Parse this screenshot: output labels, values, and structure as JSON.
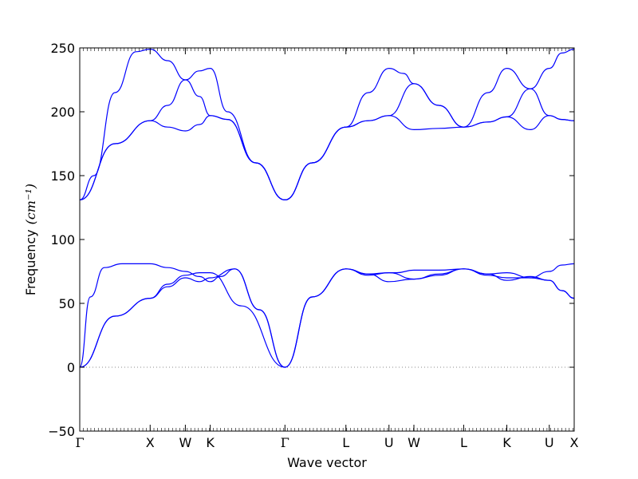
{
  "chart_data": {
    "type": "line",
    "title": "",
    "xlabel": "Wave vector",
    "ylabel": "Frequency",
    "ylabel_unit": "(cm⁻¹)",
    "ylim": [
      -50,
      250
    ],
    "yticks": [
      -50,
      0,
      50,
      100,
      150,
      200,
      250
    ],
    "grid": false,
    "line_color": "#0000ff",
    "zero_line_color": "#888888",
    "high_symmetry_points": [
      {
        "label": "Γ",
        "x": 0.0
      },
      {
        "label": "X",
        "x": 1.0
      },
      {
        "label": "W",
        "x": 1.5
      },
      {
        "label": "K",
        "x": 1.854
      },
      {
        "label": "Γ",
        "x": 2.915
      },
      {
        "label": "L",
        "x": 3.781
      },
      {
        "label": "U",
        "x": 4.393
      },
      {
        "label": "W",
        "x": 4.747
      },
      {
        "label": "L",
        "x": 5.454
      },
      {
        "label": "K",
        "x": 6.067
      },
      {
        "label": "U",
        "x": 6.67
      },
      {
        "label": "X",
        "x": 7.024
      }
    ],
    "xlim": [
      0,
      7.024
    ],
    "series": [
      {
        "values_at_points": [
          {
            "x": 0.0,
            "y": 0
          },
          {
            "x": 0.5,
            "y": 40
          },
          {
            "x": 1.0,
            "y": 54
          },
          {
            "x": 1.25,
            "y": 65
          },
          {
            "x": 1.5,
            "y": 72
          },
          {
            "x": 1.7,
            "y": 74
          },
          {
            "x": 1.854,
            "y": 74
          },
          {
            "x": 2.3,
            "y": 48
          },
          {
            "x": 2.915,
            "y": 0
          },
          {
            "x": 3.3,
            "y": 55
          },
          {
            "x": 3.781,
            "y": 77
          },
          {
            "x": 4.1,
            "y": 73
          },
          {
            "x": 4.393,
            "y": 67
          },
          {
            "x": 4.747,
            "y": 69
          },
          {
            "x": 5.1,
            "y": 73
          },
          {
            "x": 5.454,
            "y": 77
          },
          {
            "x": 5.8,
            "y": 73
          },
          {
            "x": 6.067,
            "y": 68
          },
          {
            "x": 6.4,
            "y": 71
          },
          {
            "x": 6.67,
            "y": 68
          },
          {
            "x": 6.85,
            "y": 60
          },
          {
            "x": 7.024,
            "y": 54
          }
        ]
      },
      {
        "values_at_points": [
          {
            "x": 0.0,
            "y": 0
          },
          {
            "x": 0.5,
            "y": 40
          },
          {
            "x": 1.0,
            "y": 54
          },
          {
            "x": 1.25,
            "y": 63
          },
          {
            "x": 1.5,
            "y": 70
          },
          {
            "x": 1.7,
            "y": 67
          },
          {
            "x": 1.854,
            "y": 70
          },
          {
            "x": 2.2,
            "y": 77
          },
          {
            "x": 2.55,
            "y": 45
          },
          {
            "x": 2.915,
            "y": 0
          },
          {
            "x": 3.3,
            "y": 55
          },
          {
            "x": 3.781,
            "y": 77
          },
          {
            "x": 4.1,
            "y": 72
          },
          {
            "x": 4.393,
            "y": 74
          },
          {
            "x": 4.747,
            "y": 69
          },
          {
            "x": 5.1,
            "y": 72
          },
          {
            "x": 5.454,
            "y": 77
          },
          {
            "x": 5.8,
            "y": 72
          },
          {
            "x": 6.067,
            "y": 70
          },
          {
            "x": 6.4,
            "y": 70
          },
          {
            "x": 6.67,
            "y": 68
          },
          {
            "x": 6.85,
            "y": 60
          },
          {
            "x": 7.024,
            "y": 54
          }
        ]
      },
      {
        "values_at_points": [
          {
            "x": 0.0,
            "y": 0
          },
          {
            "x": 0.15,
            "y": 55
          },
          {
            "x": 0.35,
            "y": 78
          },
          {
            "x": 0.6,
            "y": 81
          },
          {
            "x": 1.0,
            "y": 81
          },
          {
            "x": 1.25,
            "y": 78
          },
          {
            "x": 1.5,
            "y": 75
          },
          {
            "x": 1.7,
            "y": 71
          },
          {
            "x": 1.854,
            "y": 67
          },
          {
            "x": 2.0,
            "y": 71
          },
          {
            "x": 2.2,
            "y": 77
          },
          {
            "x": 2.55,
            "y": 45
          },
          {
            "x": 2.915,
            "y": 0
          },
          {
            "x": 3.3,
            "y": 55
          },
          {
            "x": 3.781,
            "y": 77
          },
          {
            "x": 4.1,
            "y": 73
          },
          {
            "x": 4.393,
            "y": 74
          },
          {
            "x": 4.5,
            "y": 74
          },
          {
            "x": 4.747,
            "y": 76
          },
          {
            "x": 5.1,
            "y": 76
          },
          {
            "x": 5.454,
            "y": 77
          },
          {
            "x": 5.8,
            "y": 73
          },
          {
            "x": 6.067,
            "y": 74
          },
          {
            "x": 6.4,
            "y": 70
          },
          {
            "x": 6.67,
            "y": 75
          },
          {
            "x": 6.85,
            "y": 80
          },
          {
            "x": 7.024,
            "y": 81
          }
        ]
      },
      {
        "values_at_points": [
          {
            "x": 0.0,
            "y": 131
          },
          {
            "x": 0.5,
            "y": 175
          },
          {
            "x": 1.0,
            "y": 193
          },
          {
            "x": 1.25,
            "y": 188
          },
          {
            "x": 1.5,
            "y": 185
          },
          {
            "x": 1.7,
            "y": 190
          },
          {
            "x": 1.854,
            "y": 197
          },
          {
            "x": 2.1,
            "y": 194
          },
          {
            "x": 2.5,
            "y": 160
          },
          {
            "x": 2.915,
            "y": 131
          },
          {
            "x": 3.3,
            "y": 160
          },
          {
            "x": 3.781,
            "y": 188
          },
          {
            "x": 4.1,
            "y": 193
          },
          {
            "x": 4.393,
            "y": 197
          },
          {
            "x": 4.747,
            "y": 186
          },
          {
            "x": 5.1,
            "y": 187
          },
          {
            "x": 5.454,
            "y": 188
          },
          {
            "x": 5.8,
            "y": 192
          },
          {
            "x": 6.067,
            "y": 196
          },
          {
            "x": 6.4,
            "y": 186
          },
          {
            "x": 6.67,
            "y": 197
          },
          {
            "x": 6.85,
            "y": 194
          },
          {
            "x": 7.024,
            "y": 193
          }
        ]
      },
      {
        "values_at_points": [
          {
            "x": 0.0,
            "y": 131
          },
          {
            "x": 0.5,
            "y": 175
          },
          {
            "x": 1.0,
            "y": 193
          },
          {
            "x": 1.25,
            "y": 205
          },
          {
            "x": 1.5,
            "y": 225
          },
          {
            "x": 1.7,
            "y": 212
          },
          {
            "x": 1.854,
            "y": 197
          },
          {
            "x": 2.1,
            "y": 194
          },
          {
            "x": 2.5,
            "y": 160
          },
          {
            "x": 2.915,
            "y": 131
          },
          {
            "x": 3.3,
            "y": 160
          },
          {
            "x": 3.781,
            "y": 188
          },
          {
            "x": 4.1,
            "y": 193
          },
          {
            "x": 4.393,
            "y": 197
          },
          {
            "x": 4.747,
            "y": 222
          },
          {
            "x": 5.1,
            "y": 205
          },
          {
            "x": 5.454,
            "y": 188
          },
          {
            "x": 5.8,
            "y": 192
          },
          {
            "x": 6.067,
            "y": 196
          },
          {
            "x": 6.4,
            "y": 218
          },
          {
            "x": 6.67,
            "y": 234
          },
          {
            "x": 6.85,
            "y": 246
          },
          {
            "x": 7.024,
            "y": 249
          }
        ]
      },
      {
        "values_at_points": [
          {
            "x": 0.0,
            "y": 131
          },
          {
            "x": 0.2,
            "y": 150
          },
          {
            "x": 0.5,
            "y": 215
          },
          {
            "x": 0.8,
            "y": 247
          },
          {
            "x": 1.0,
            "y": 249
          },
          {
            "x": 1.25,
            "y": 240
          },
          {
            "x": 1.5,
            "y": 225
          },
          {
            "x": 1.7,
            "y": 232
          },
          {
            "x": 1.854,
            "y": 234
          },
          {
            "x": 2.1,
            "y": 200
          },
          {
            "x": 2.5,
            "y": 160
          },
          {
            "x": 2.915,
            "y": 131
          },
          {
            "x": 3.3,
            "y": 160
          },
          {
            "x": 3.781,
            "y": 188
          },
          {
            "x": 4.1,
            "y": 215
          },
          {
            "x": 4.393,
            "y": 234
          },
          {
            "x": 4.6,
            "y": 230
          },
          {
            "x": 4.747,
            "y": 222
          },
          {
            "x": 5.1,
            "y": 205
          },
          {
            "x": 5.454,
            "y": 188
          },
          {
            "x": 5.8,
            "y": 215
          },
          {
            "x": 6.067,
            "y": 234
          },
          {
            "x": 6.4,
            "y": 218
          },
          {
            "x": 6.67,
            "y": 197
          },
          {
            "x": 6.85,
            "y": 194
          },
          {
            "x": 7.024,
            "y": 193
          }
        ]
      }
    ]
  }
}
